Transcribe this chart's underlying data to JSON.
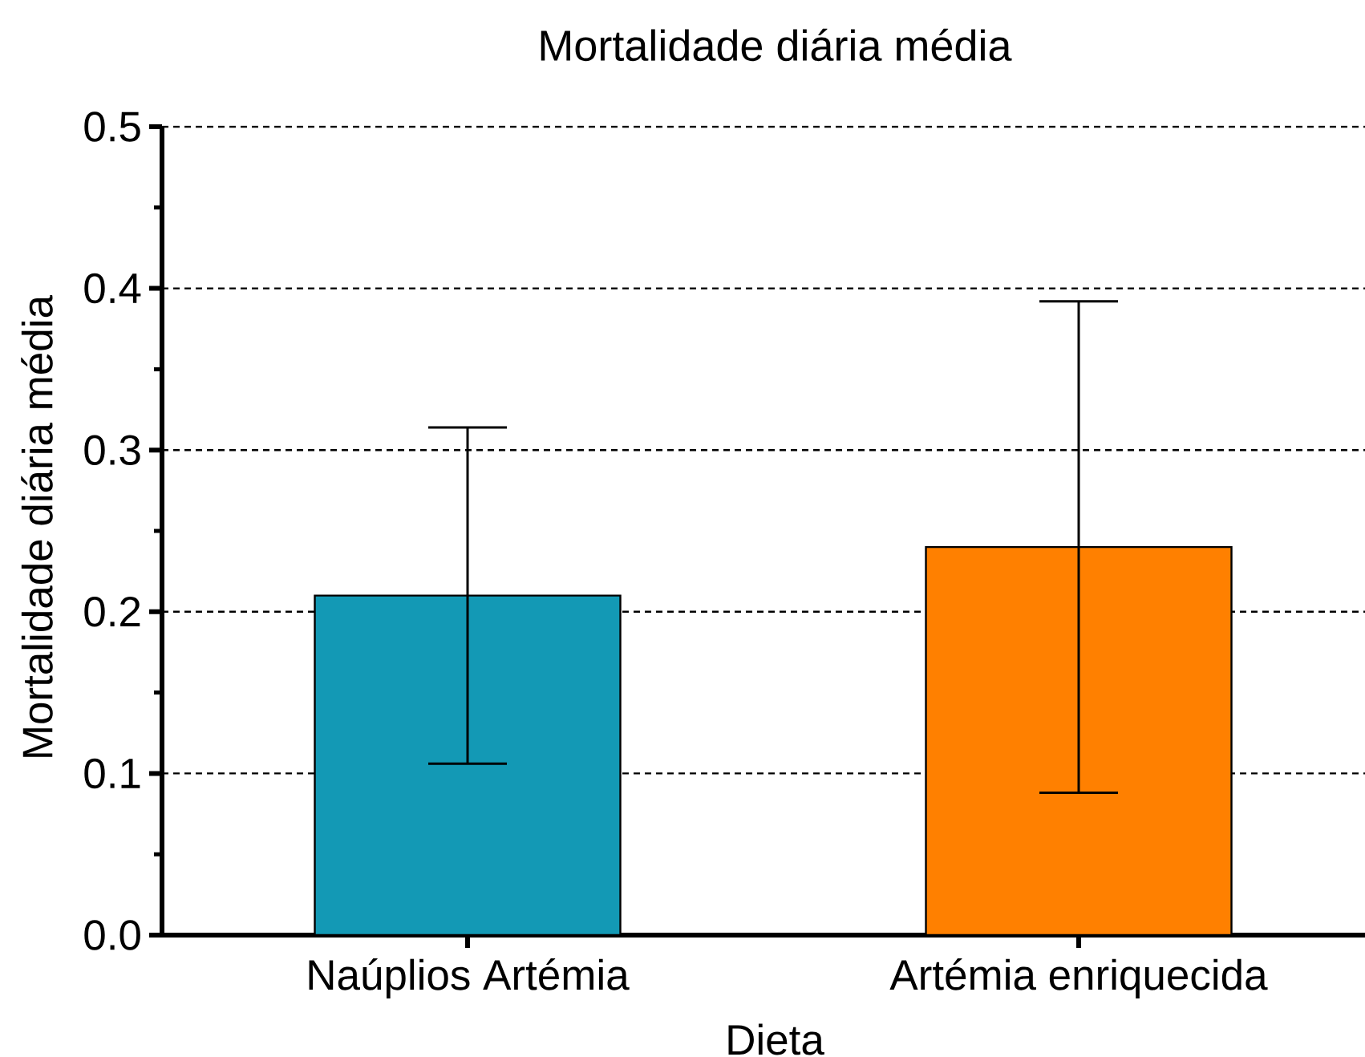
{
  "chart_data": {
    "type": "bar",
    "title": "Mortalidade diária média",
    "xlabel": "Dieta",
    "ylabel": "Mortalidade diária média",
    "categories": [
      "Naúplios Artémia",
      "Artémia enriquecida"
    ],
    "values": [
      0.21,
      0.24
    ],
    "errors": [
      0.104,
      0.152
    ],
    "colors": [
      "#1399b5",
      "#ff8000"
    ],
    "ylim": [
      0,
      0.5
    ],
    "yticks": [
      {
        "value": 0,
        "label": "0.0"
      },
      {
        "value": 0.05,
        "label": null
      },
      {
        "value": 0.1,
        "label": "0.1"
      },
      {
        "value": 0.15,
        "label": null
      },
      {
        "value": 0.2,
        "label": "0.2"
      },
      {
        "value": 0.25,
        "label": null
      },
      {
        "value": 0.3,
        "label": "0.3"
      },
      {
        "value": 0.35,
        "label": null
      },
      {
        "value": 0.4,
        "label": "0.4"
      },
      {
        "value": 0.45,
        "label": null
      },
      {
        "value": 0.5,
        "label": "0.5"
      }
    ],
    "grid": "y"
  }
}
